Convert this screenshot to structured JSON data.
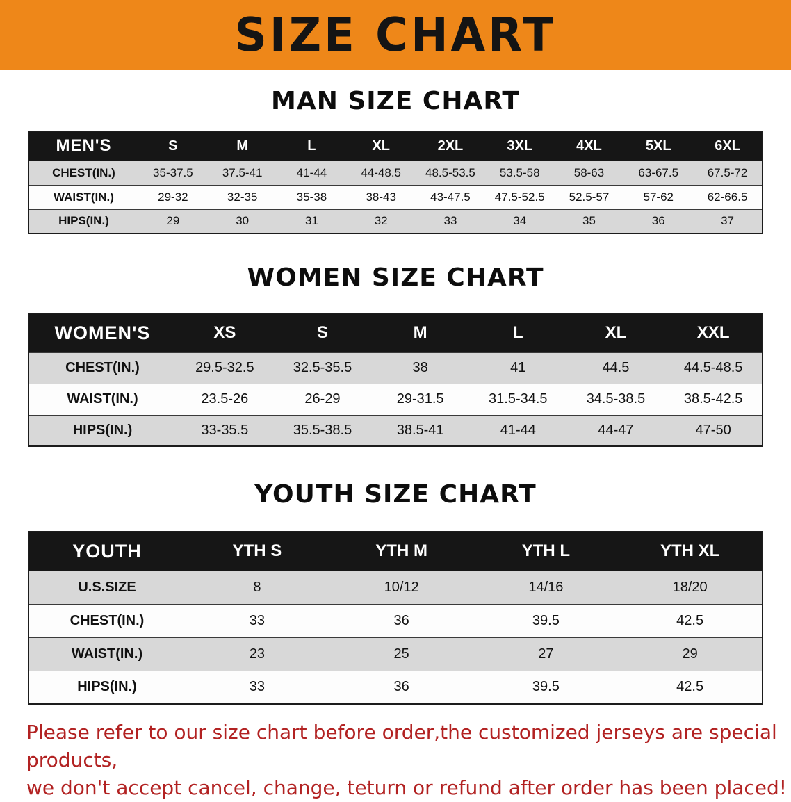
{
  "banner": {
    "title": "SIZE CHART",
    "bg_color": "#ee8719",
    "text_color": "#141414"
  },
  "chart_data": [
    {
      "type": "table",
      "title": "MAN SIZE CHART",
      "header": [
        "MEN'S",
        "S",
        "M",
        "L",
        "XL",
        "2XL",
        "3XL",
        "4XL",
        "5XL",
        "6XL"
      ],
      "rows": [
        [
          "CHEST(IN.)",
          "35-37.5",
          "37.5-41",
          "41-44",
          "44-48.5",
          "48.5-53.5",
          "53.5-58",
          "58-63",
          "63-67.5",
          "67.5-72"
        ],
        [
          "WAIST(IN.)",
          "29-32",
          "32-35",
          "35-38",
          "38-43",
          "43-47.5",
          "47.5-52.5",
          "52.5-57",
          "57-62",
          "62-66.5"
        ],
        [
          "HIPS(IN.)",
          "29",
          "30",
          "31",
          "32",
          "33",
          "34",
          "35",
          "36",
          "37"
        ]
      ],
      "header_bg": "#161616",
      "odd_row_bg": "#d8d8d8",
      "even_row_bg": "#fdfdfd"
    },
    {
      "type": "table",
      "title": "WOMEN SIZE CHART",
      "header": [
        "WOMEN'S",
        "XS",
        "S",
        "M",
        "L",
        "XL",
        "XXL"
      ],
      "rows": [
        [
          "CHEST(IN.)",
          "29.5-32.5",
          "32.5-35.5",
          "38",
          "41",
          "44.5",
          "44.5-48.5"
        ],
        [
          "WAIST(IN.)",
          "23.5-26",
          "26-29",
          "29-31.5",
          "31.5-34.5",
          "34.5-38.5",
          "38.5-42.5"
        ],
        [
          "HIPS(IN.)",
          "33-35.5",
          "35.5-38.5",
          "38.5-41",
          "41-44",
          "44-47",
          "47-50"
        ]
      ],
      "header_bg": "#161616",
      "odd_row_bg": "#d8d8d8",
      "even_row_bg": "#fdfdfd"
    },
    {
      "type": "table",
      "title": "YOUTH SIZE CHART",
      "header": [
        "YOUTH",
        "YTH S",
        "YTH M",
        "YTH L",
        "YTH XL"
      ],
      "rows": [
        [
          "U.S.SIZE",
          "8",
          "10/12",
          "14/16",
          "18/20"
        ],
        [
          "CHEST(IN.)",
          "33",
          "36",
          "39.5",
          "42.5"
        ],
        [
          "WAIST(IN.)",
          "23",
          "25",
          "27",
          "29"
        ],
        [
          "HIPS(IN.)",
          "33",
          "36",
          "39.5",
          "42.5"
        ]
      ],
      "header_bg": "#161616",
      "odd_row_bg": "#d8d8d8",
      "even_row_bg": "#fdfdfd"
    }
  ],
  "footer": {
    "line1": "Please refer to our size chart before order,the customized jerseys are special products,",
    "line2": "we don't accept cancel, change, teturn or refund after order has been placed!",
    "text_color": "#b22222"
  }
}
